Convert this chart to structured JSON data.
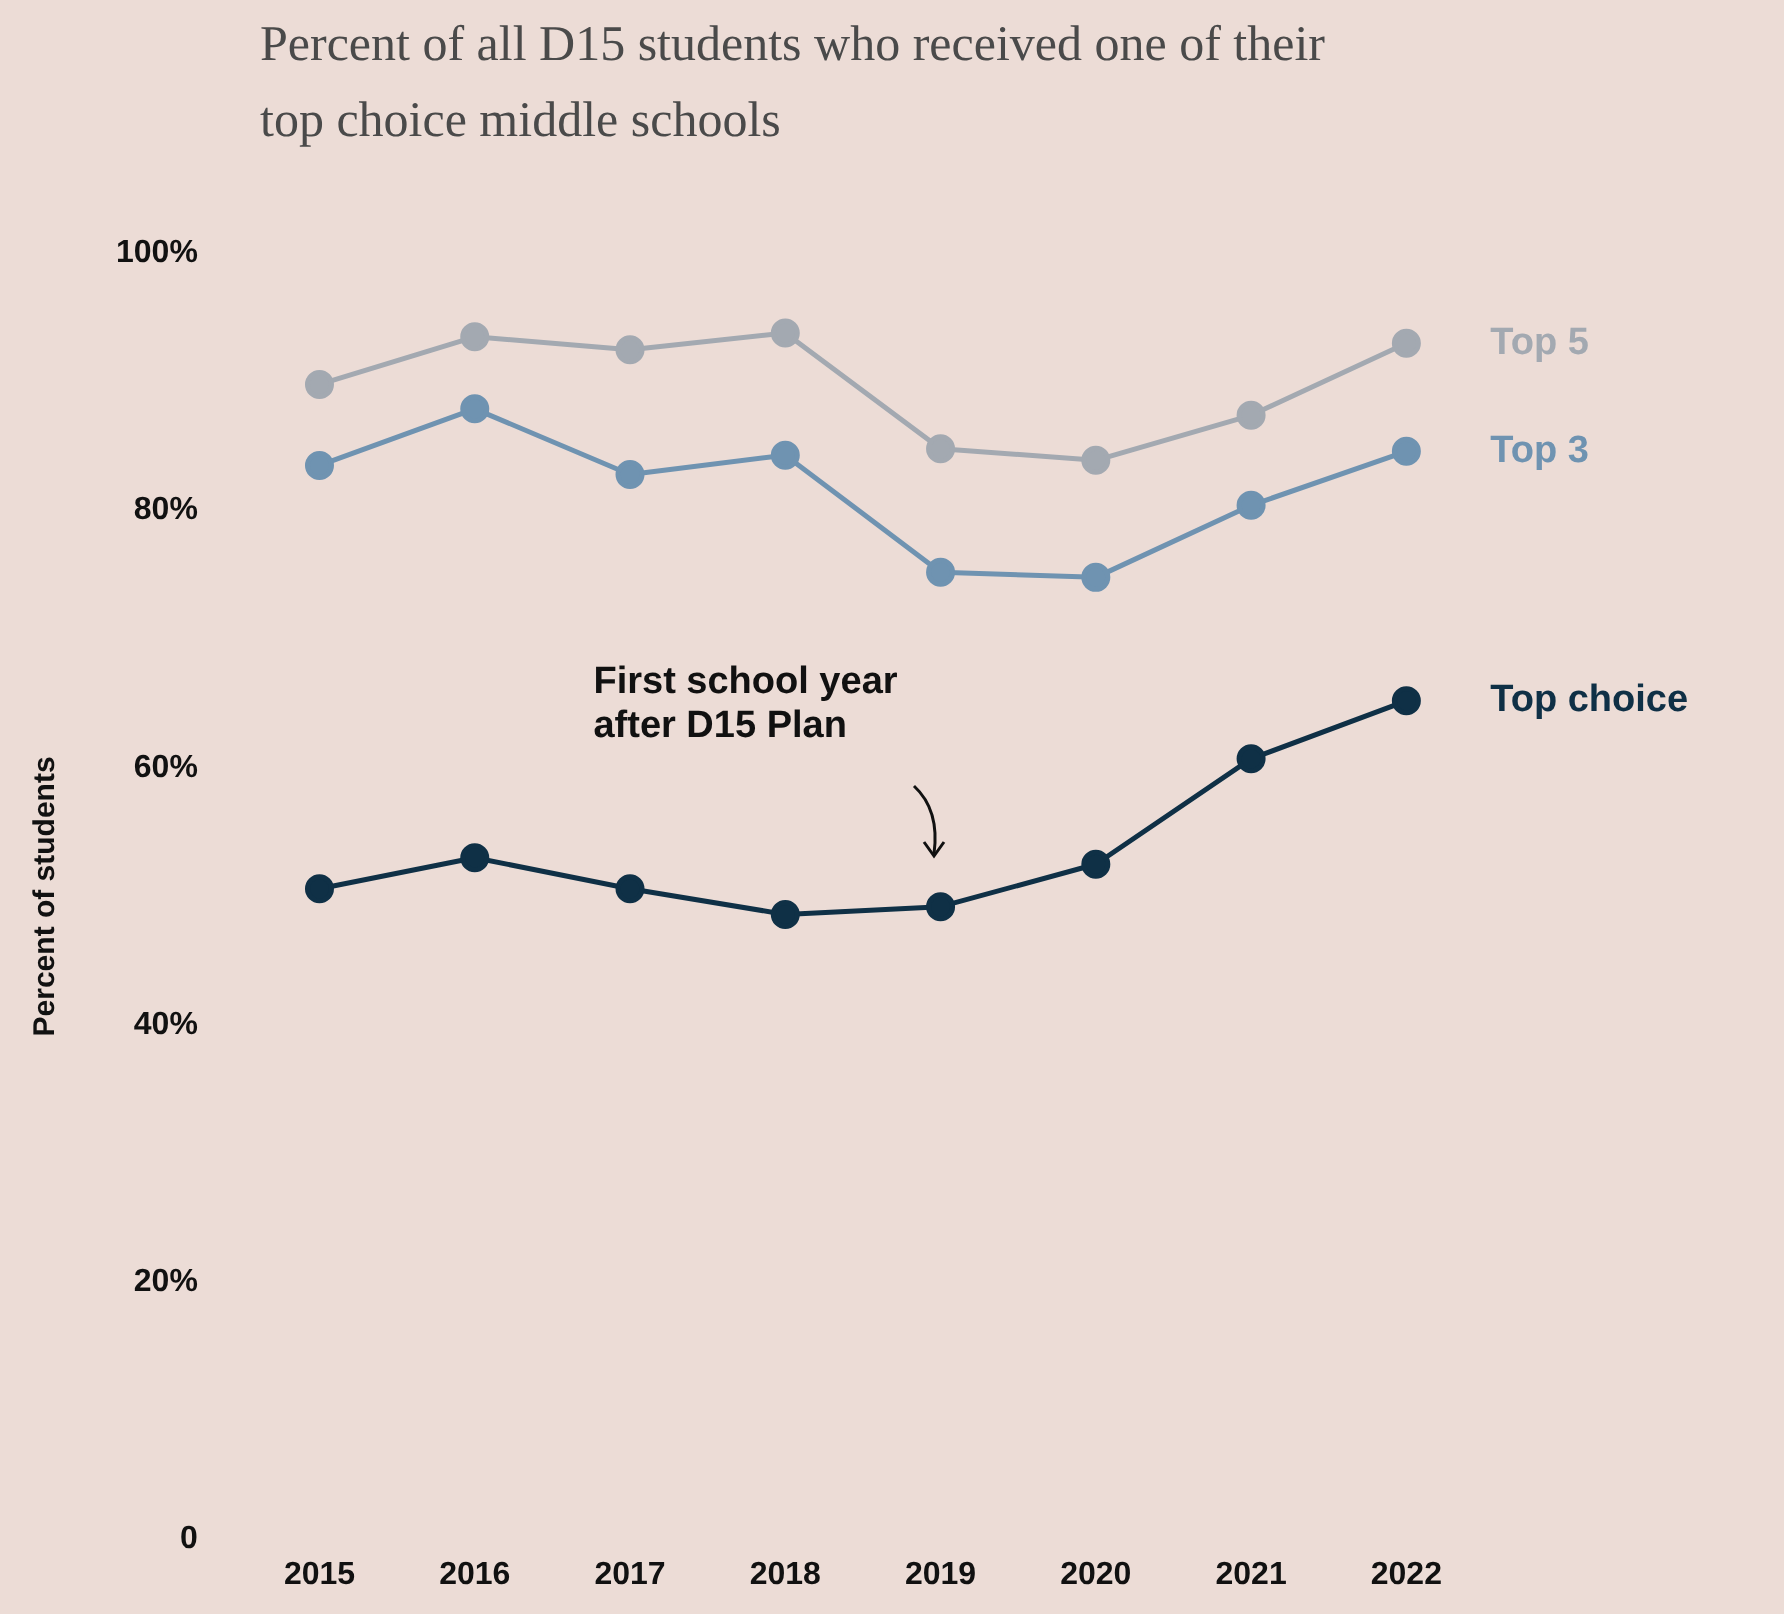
{
  "chart_data": {
    "type": "line",
    "title": "Percent of all D15 students who received one of their top choice middle schools",
    "ylabel": "Percent of students",
    "categories": [
      "2015",
      "2016",
      "2017",
      "2018",
      "2019",
      "2020",
      "2021",
      "2022"
    ],
    "series": [
      {
        "name": "Top 5",
        "color": "#a3a9b1",
        "values": [
          89.8,
          93.5,
          92.5,
          93.8,
          84.8,
          83.9,
          87.4,
          93
        ]
      },
      {
        "name": "Top 3",
        "color": "#6f93b1",
        "values": [
          83.5,
          87.9,
          82.8,
          84.3,
          75.2,
          74.8,
          80.4,
          84.6
        ]
      },
      {
        "name": "Top choice",
        "color": "#0f3046",
        "values": [
          50.6,
          53,
          50.6,
          48.6,
          49.2,
          52.5,
          60.7,
          65.2
        ]
      }
    ],
    "ylim": [
      0,
      100
    ],
    "yticks": [
      {
        "value": 0,
        "label": "0"
      },
      {
        "value": 20,
        "label": "20%"
      },
      {
        "value": 40,
        "label": "40%"
      },
      {
        "value": 60,
        "label": "60%"
      },
      {
        "value": 80,
        "label": "80%"
      },
      {
        "value": 100,
        "label": "100%"
      }
    ],
    "annotations": [
      "First school year after D15 Plan"
    ],
    "grid": false,
    "legend": false,
    "marker": "circle",
    "line_style": "solid"
  }
}
